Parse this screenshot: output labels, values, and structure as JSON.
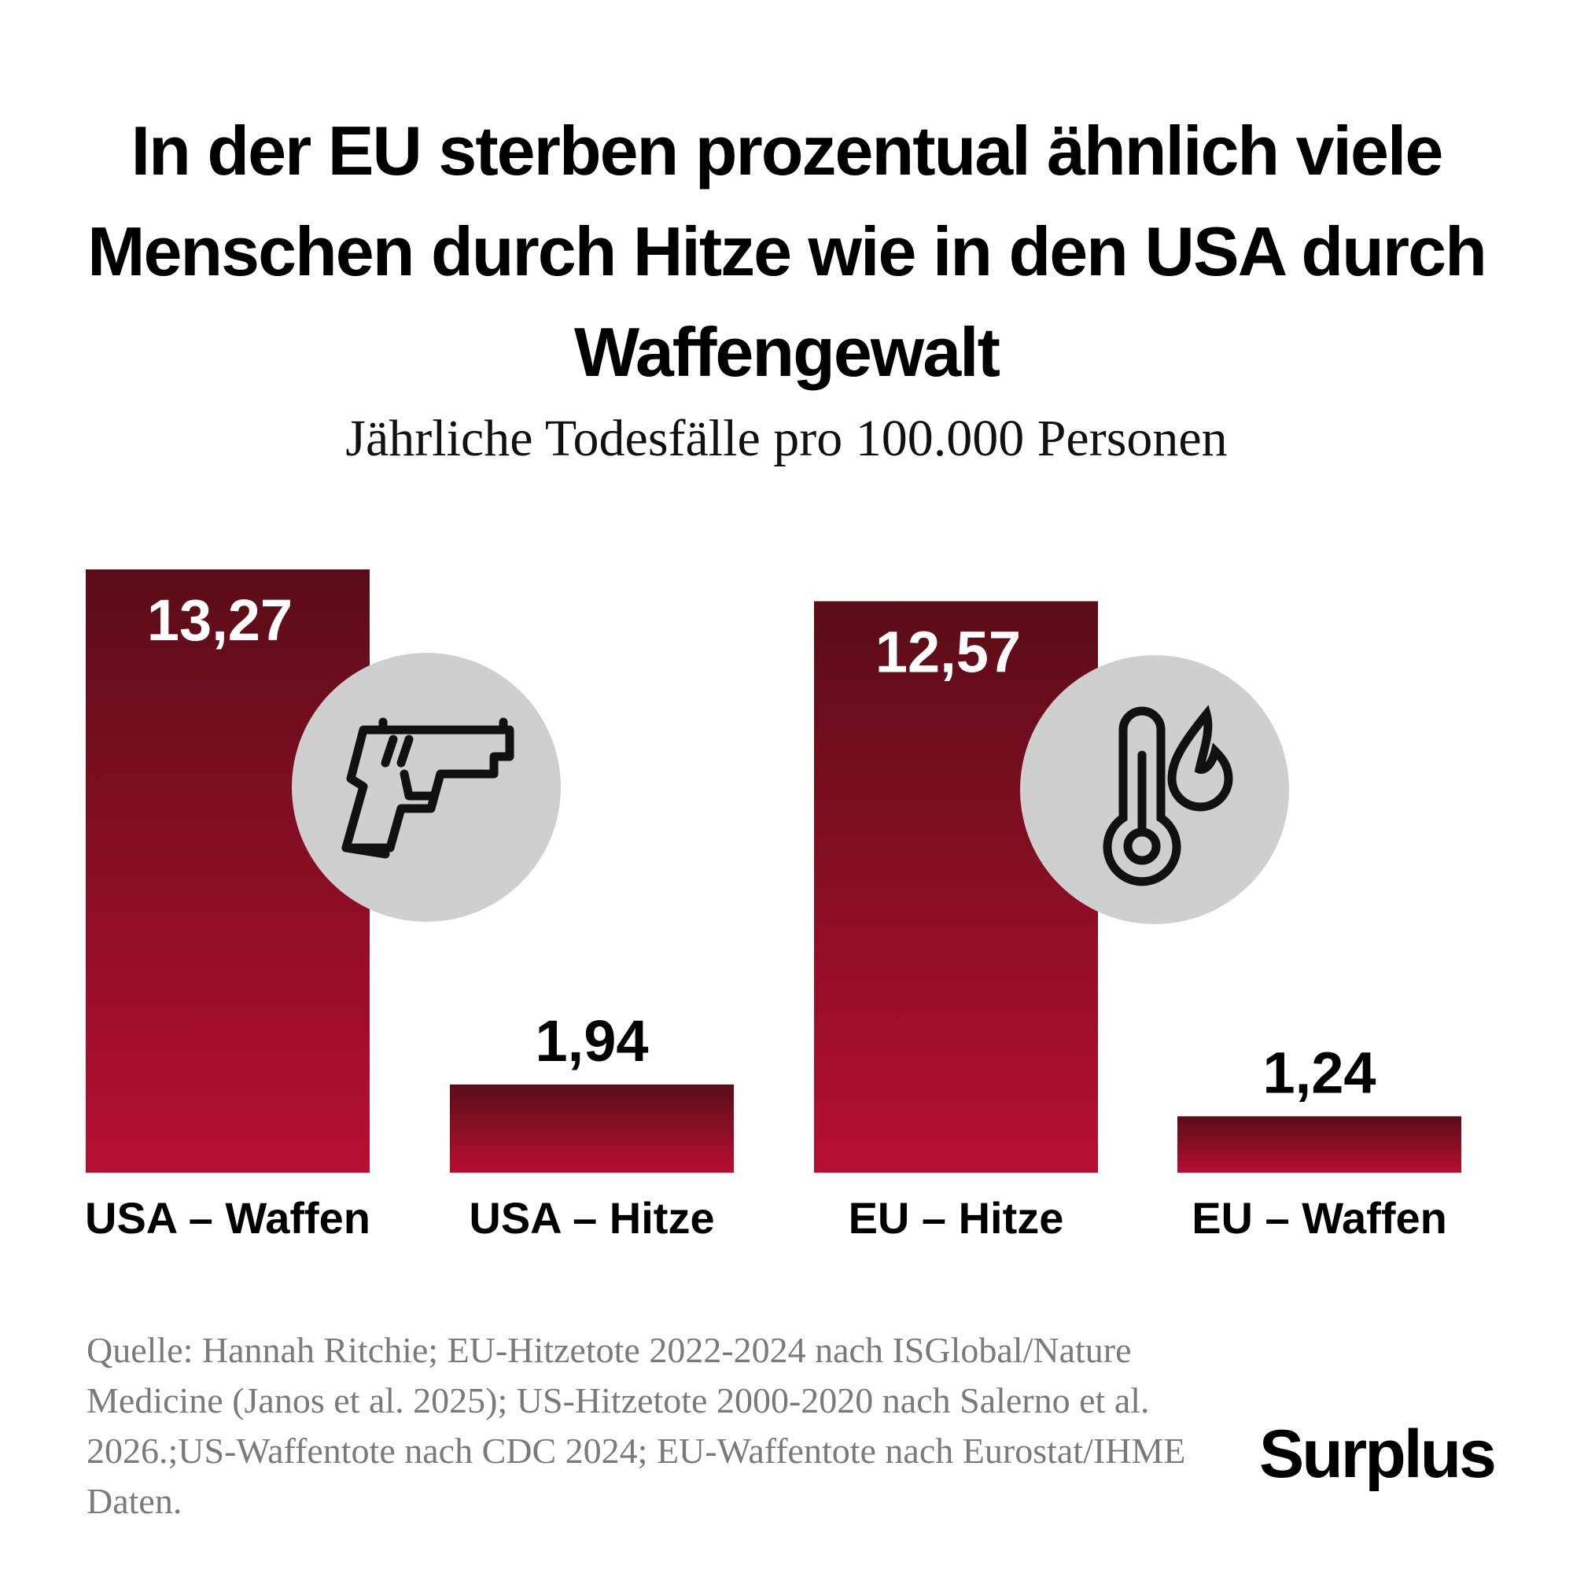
{
  "chart_data": {
    "type": "bar",
    "title": "In der EU sterben prozentual ähnlich viele Menschen durch Hitze wie in den USA durch Waffengewalt",
    "subtitle": "Jährliche Todesfälle pro 100.000 Personen",
    "categories": [
      "USA – Waffen",
      "USA – Hitze",
      "EU – Hitze",
      "EU – Waffen"
    ],
    "values": [
      13.27,
      1.94,
      12.57,
      1.24
    ],
    "value_labels": [
      "13,27",
      "1,94",
      "12,57",
      "1,24"
    ],
    "gradient": [
      "#5a0d18",
      "#b80f31"
    ]
  },
  "source": "Quelle: Hannah Ritchie; EU-Hitzetote 2022-2024 nach ISGlobal/Nature Medicine (Janos et al. 2025); US-Hitzetote 2000-2020 nach Salerno et al. 2026.;US-Waffentote nach CDC 2024; EU-Waffentote nach Eurostat/IHME Daten.",
  "logo": "Surplus"
}
